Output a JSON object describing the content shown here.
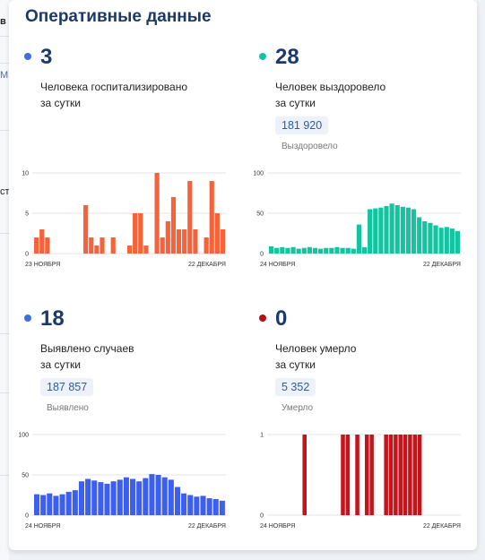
{
  "page": {
    "title": "Оперативные данные"
  },
  "left_strip": {
    "fragments": [
      "в",
      "М",
      "ст"
    ]
  },
  "panels": [
    {
      "id": "hospitalized",
      "color": "#f4633a",
      "dot_color": "#3d6fe0",
      "number": "3",
      "desc_line1": "Человека госпитализировано",
      "desc_line2": "за сутки",
      "total": "",
      "total_label": ""
    },
    {
      "id": "recovered",
      "color": "#14c4a0",
      "dot_color": "#14c4a0",
      "number": "28",
      "desc_line1": "Человек выздоровело",
      "desc_line2": "за сутки",
      "total": "181 920",
      "total_label": "Выздоровело"
    },
    {
      "id": "cases",
      "color": "#3d5ff0",
      "dot_color": "#3d6fe0",
      "number": "18",
      "desc_line1": "Выявлено случаев",
      "desc_line2": "за сутки",
      "total": "187 857",
      "total_label": "Выявлено"
    },
    {
      "id": "deaths",
      "color": "#c4141c",
      "dot_color": "#b3101a",
      "number": "0",
      "desc_line1": "Человек умерло",
      "desc_line2": "за сутки",
      "total": "5 352",
      "total_label": "Умерло"
    }
  ],
  "chart_data": [
    {
      "type": "bar",
      "x_start_label": "23 НОЯБРЯ",
      "x_end_label": "22 ДЕКАБРЯ",
      "yticks": [
        "0",
        "5",
        "10"
      ],
      "ylim": [
        0,
        10
      ],
      "values": [
        2,
        3,
        2,
        0,
        0,
        0,
        0,
        0,
        0,
        6,
        2,
        1,
        2,
        0,
        2,
        0,
        0,
        1,
        5,
        5,
        1,
        0,
        10,
        2,
        4,
        7,
        3,
        3,
        9,
        3,
        0,
        2,
        9,
        5,
        3
      ]
    },
    {
      "type": "bar",
      "x_start_label": "24 НОЯБРЯ",
      "x_end_label": "22 ДЕКАБРЯ",
      "yticks": [
        "0",
        "50",
        "100"
      ],
      "ylim": [
        0,
        100
      ],
      "values": [
        9,
        7,
        8,
        7,
        8,
        6,
        7,
        8,
        7,
        6,
        7,
        7,
        8,
        7,
        7,
        6,
        36,
        8,
        55,
        56,
        57,
        59,
        62,
        60,
        58,
        57,
        55,
        45,
        40,
        38,
        35,
        32,
        33,
        31,
        28
      ]
    },
    {
      "type": "bar",
      "x_start_label": "24 НОЯБРЯ",
      "x_end_label": "22 ДЕКАБРЯ",
      "yticks": [
        "0",
        "50",
        "100"
      ],
      "ylim": [
        0,
        100
      ],
      "values": [
        26,
        25,
        27,
        24,
        26,
        29,
        31,
        42,
        45,
        43,
        41,
        39,
        42,
        44,
        47,
        45,
        42,
        46,
        51,
        50,
        47,
        44,
        35,
        27,
        25,
        23,
        24,
        21,
        20,
        18
      ]
    },
    {
      "type": "bar",
      "x_start_label": "24 НОЯБРЯ",
      "x_end_label": "22 ДЕКАБРЯ",
      "yticks": [
        "0",
        "1"
      ],
      "ylim": [
        0,
        1
      ],
      "values": [
        0,
        0,
        0,
        0,
        0,
        0,
        0,
        1,
        0,
        0,
        0,
        0,
        0,
        0,
        0,
        1,
        1,
        0,
        1,
        0,
        1,
        1,
        0,
        0,
        1,
        1,
        1,
        1,
        1,
        1,
        1,
        1,
        0,
        0,
        0,
        0,
        0,
        0,
        0,
        0
      ]
    }
  ]
}
